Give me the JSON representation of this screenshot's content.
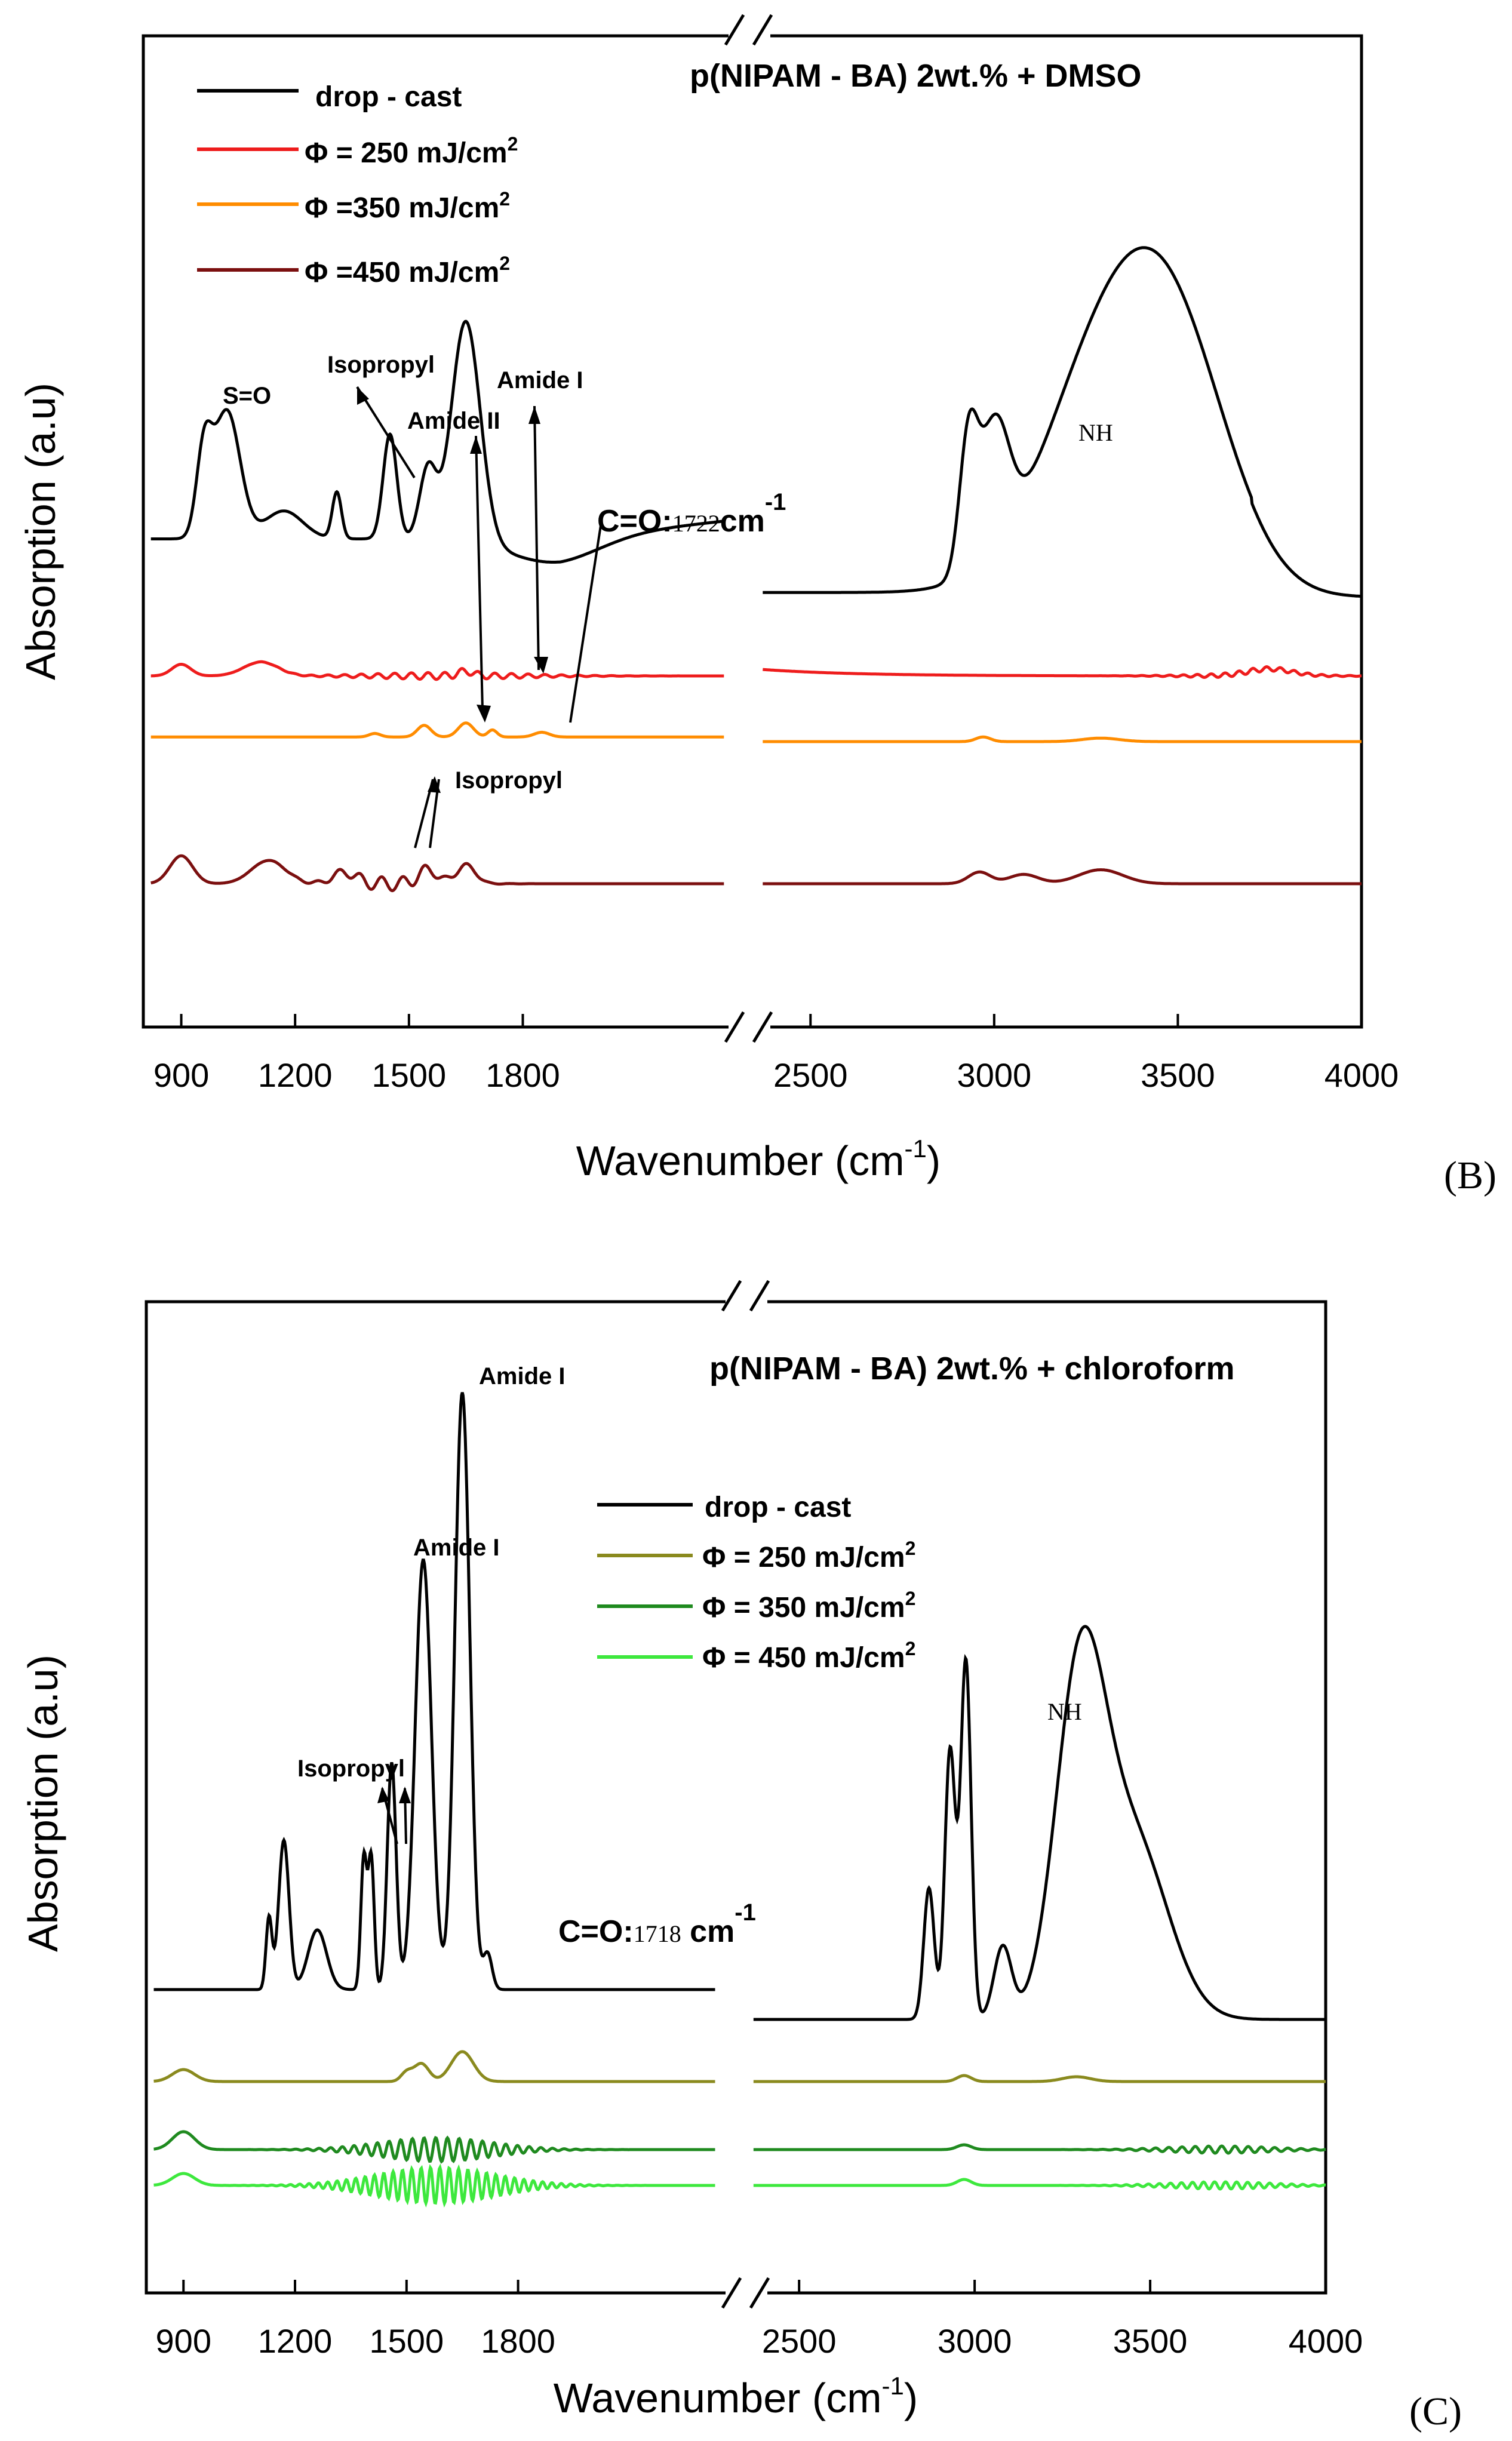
{
  "chart_data": [
    {
      "type": "line",
      "panel_label": "(B)",
      "title": "p(NIPAM - BA) 2wt.% + DMSO",
      "xlabel_main": "Wavenumber (cm",
      "xlabel_sup": "-1",
      "xlabel_close": ")",
      "ylabel": "Absorption (a.u)",
      "x_ticks": [
        "900",
        "1200",
        "1500",
        "1800",
        "2500",
        "3000",
        "3500",
        "4000"
      ],
      "x_segments": [
        [
          800,
          2350
        ],
        [
          2350,
          4000
        ]
      ],
      "legend": [
        {
          "name": "drop - cast",
          "color": "#000000"
        },
        {
          "name": "Φ = 250 mJ/cm",
          "sup": "2",
          "color": "#ee1c1c"
        },
        {
          "name": "Φ =350 mJ/cm",
          "sup": "2",
          "color": "#ff8c00"
        },
        {
          "name": "Φ =450 mJ/cm",
          "sup": "2",
          "color": "#7b0f0f"
        }
      ],
      "annotations": {
        "s_o": "S=O",
        "isopropyl": "Isopropyl",
        "amide_ii": "Amide II",
        "amide_i": "Amide I",
        "co_prefix": "C=O:",
        "co_value": "1722",
        "co_unit": "cm",
        "co_sup": "-1",
        "nh": "NH",
        "isopropyl_2": "Isopropyl"
      },
      "series": [
        {
          "name": "drop - cast",
          "color": "#000000",
          "offset": 0.0
        },
        {
          "name": "Φ = 250 mJ/cm2",
          "color": "#ee1c1c",
          "offset": 1.0
        },
        {
          "name": "Φ =350 mJ/cm2",
          "color": "#ff8c00",
          "offset": 2.0
        },
        {
          "name": "Φ =450 mJ/cm2",
          "color": "#7b0f0f",
          "offset": 3.0
        }
      ]
    },
    {
      "type": "line",
      "panel_label": "(C)",
      "title": "p(NIPAM - BA) 2wt.% + chloroform",
      "xlabel_main": "Wavenumber (cm",
      "xlabel_sup": "-1",
      "xlabel_close": ")",
      "ylabel": "Absorption (a.u)",
      "x_ticks": [
        "900",
        "1200",
        "1500",
        "1800",
        "2500",
        "3000",
        "3500",
        "4000"
      ],
      "x_segments": [
        [
          800,
          2350
        ],
        [
          2350,
          4000
        ]
      ],
      "legend": [
        {
          "name": "drop - cast",
          "color": "#000000"
        },
        {
          "name": "Φ = 250 mJ/cm",
          "sup": "2",
          "color": "#8a8a1e"
        },
        {
          "name": "Φ = 350 mJ/cm",
          "sup": "2",
          "color": "#1f8a1f"
        },
        {
          "name": "Φ = 450 mJ/cm",
          "sup": "2",
          "color": "#3de83d"
        }
      ],
      "annotations": {
        "amide_i_top": "Amide I",
        "amide_i_second": "Amide I",
        "isopropyl": "Isopropyl",
        "co_prefix": "C=O:",
        "co_value": "1718",
        "co_unit": " cm",
        "co_sup": "-1",
        "nh": "NH"
      },
      "series": [
        {
          "name": "drop - cast",
          "color": "#000000",
          "offset": 0.0
        },
        {
          "name": "Φ = 250 mJ/cm2",
          "color": "#8a8a1e",
          "offset": 1.0
        },
        {
          "name": "Φ = 350 mJ/cm2",
          "color": "#1f8a1f",
          "offset": 2.0
        },
        {
          "name": "Φ = 450 mJ/cm2",
          "color": "#3de83d",
          "offset": 3.0
        }
      ]
    }
  ]
}
